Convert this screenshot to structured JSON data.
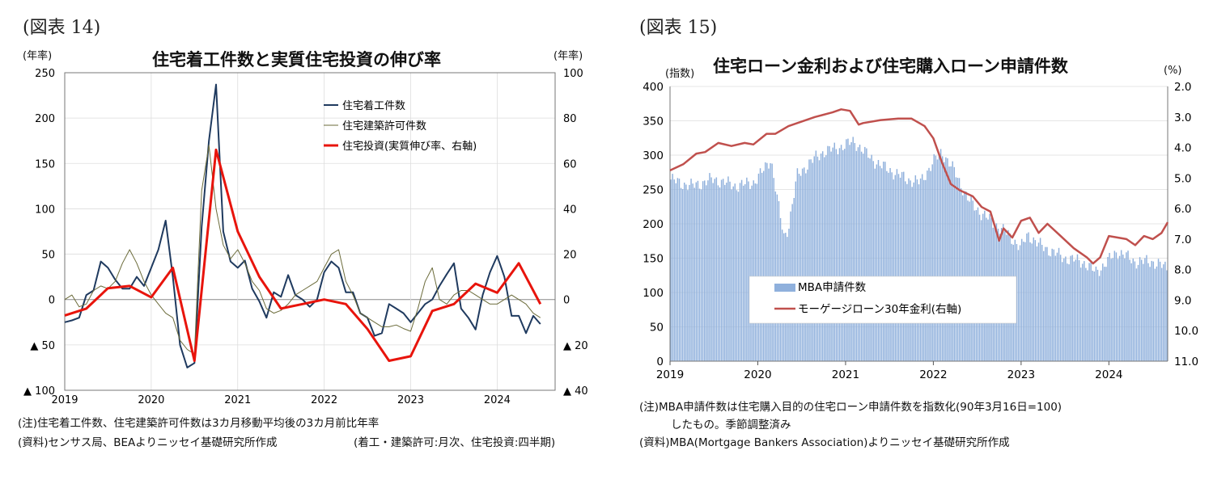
{
  "left": {
    "fig_label": "(図表 14)",
    "title": "住宅着工件数と実質住宅投資の伸び率",
    "y_left_unit": "(年率)",
    "y_right_unit": "(年率)",
    "legend": [
      "住宅着工件数",
      "住宅建築許可件数",
      "住宅投資(実質伸び率、右軸)"
    ],
    "notes": [
      "(注)住宅着工件数、住宅建築許可件数は3カ月移動平均後の3カ月前比年率",
      "(資料)センサス局、BEAよりニッセイ基礎研究所作成"
    ],
    "note_right": "(着工・建築許可:月次、住宅投資:四半期)"
  },
  "right": {
    "fig_label": "(図表 15)",
    "title": "住宅ローン金利および住宅購入ローン申請件数",
    "y_left_unit": "(指数)",
    "y_right_unit": "(%)",
    "legend": [
      "MBA申請件数",
      "モーゲージローン30年金利(右軸)"
    ],
    "notes": [
      "(注)MBA申請件数は住宅購入目的の住宅ローン申請件数を指数化(90年3月16日=100)",
      "したもの。季節調整済み",
      "(資料)MBA(Mortgage Bankers Association)よりニッセイ基礎研究所作成"
    ]
  },
  "colors": {
    "starts": "#1f3a5f",
    "permits": "#6b6b3a",
    "investment": "#e8140c",
    "mba_bar": "#8fb0dc",
    "mortgage": "#c0504d"
  },
  "chart_data": [
    {
      "type": "line",
      "title": "住宅着工件数と実質住宅投資の伸び率",
      "x_tick_labels": [
        "2019",
        "2020",
        "2021",
        "2022",
        "2023",
        "2024"
      ],
      "x_range": [
        2019.0,
        2024.67
      ],
      "y_left": {
        "ylim": [
          -100,
          250
        ],
        "ticks": [
          250,
          200,
          150,
          100,
          50,
          0,
          -50,
          -100
        ],
        "tick_labels": [
          "250",
          "200",
          "150",
          "100",
          "50",
          "0",
          "▲ 50",
          "▲ 100"
        ]
      },
      "y_right": {
        "ylim": [
          -40,
          100
        ],
        "ticks": [
          100,
          80,
          60,
          40,
          20,
          0,
          -20,
          -40
        ],
        "tick_labels": [
          "100",
          "80",
          "60",
          "40",
          "20",
          "0",
          "▲ 20",
          "▲ 40"
        ]
      },
      "series": [
        {
          "name": "住宅着工件数",
          "axis": "left",
          "x": [
            2019.0,
            2019.083,
            2019.167,
            2019.25,
            2019.333,
            2019.417,
            2019.5,
            2019.583,
            2019.667,
            2019.75,
            2019.833,
            2019.917,
            2020.0,
            2020.083,
            2020.167,
            2020.25,
            2020.333,
            2020.417,
            2020.5,
            2020.583,
            2020.667,
            2020.75,
            2020.833,
            2020.917,
            2021.0,
            2021.083,
            2021.167,
            2021.25,
            2021.333,
            2021.417,
            2021.5,
            2021.583,
            2021.667,
            2021.75,
            2021.833,
            2021.917,
            2022.0,
            2022.083,
            2022.167,
            2022.25,
            2022.333,
            2022.417,
            2022.5,
            2022.583,
            2022.667,
            2022.75,
            2022.833,
            2022.917,
            2023.0,
            2023.083,
            2023.167,
            2023.25,
            2023.333,
            2023.417,
            2023.5,
            2023.583,
            2023.667,
            2023.75,
            2023.833,
            2023.917,
            2024.0,
            2024.083,
            2024.167,
            2024.25,
            2024.333,
            2024.417,
            2024.5
          ],
          "values": [
            -25,
            -23,
            -20,
            5,
            10,
            42,
            35,
            22,
            12,
            12,
            25,
            15,
            35,
            55,
            87,
            25,
            -50,
            -75,
            -70,
            80,
            175,
            237,
            75,
            42,
            35,
            43,
            12,
            -2,
            -20,
            8,
            3,
            27,
            5,
            0,
            -8,
            0,
            30,
            42,
            35,
            8,
            8,
            -15,
            -20,
            -40,
            -37,
            -5,
            -10,
            -15,
            -25,
            -15,
            -5,
            0,
            15,
            28,
            40,
            -10,
            -20,
            -33,
            5,
            30,
            48,
            25,
            -18,
            -18,
            -37,
            -18,
            -27
          ]
        },
        {
          "name": "住宅建築許可件数",
          "axis": "left",
          "x": [
            2019.0,
            2019.083,
            2019.167,
            2019.25,
            2019.333,
            2019.417,
            2019.5,
            2019.583,
            2019.667,
            2019.75,
            2019.833,
            2019.917,
            2020.0,
            2020.083,
            2020.167,
            2020.25,
            2020.333,
            2020.417,
            2020.5,
            2020.583,
            2020.667,
            2020.75,
            2020.833,
            2020.917,
            2021.0,
            2021.083,
            2021.167,
            2021.25,
            2021.333,
            2021.417,
            2021.5,
            2021.583,
            2021.667,
            2021.75,
            2021.833,
            2021.917,
            2022.0,
            2022.083,
            2022.167,
            2022.25,
            2022.333,
            2022.417,
            2022.5,
            2022.583,
            2022.667,
            2022.75,
            2022.833,
            2022.917,
            2023.0,
            2023.083,
            2023.167,
            2023.25,
            2023.333,
            2023.417,
            2023.5,
            2023.583,
            2023.667,
            2023.75,
            2023.833,
            2023.917,
            2024.0,
            2024.083,
            2024.167,
            2024.25,
            2024.333,
            2024.417,
            2024.5
          ],
          "values": [
            0,
            5,
            -8,
            -5,
            10,
            15,
            12,
            20,
            40,
            55,
            40,
            20,
            5,
            -5,
            -15,
            -20,
            -45,
            -55,
            -60,
            120,
            170,
            100,
            60,
            45,
            55,
            40,
            20,
            10,
            -10,
            -15,
            -12,
            -5,
            5,
            10,
            15,
            20,
            35,
            50,
            55,
            20,
            5,
            -15,
            -20,
            -25,
            -30,
            -30,
            -28,
            -32,
            -35,
            -10,
            20,
            35,
            0,
            -5,
            5,
            10,
            10,
            5,
            0,
            -5,
            -5,
            0,
            5,
            0,
            -5,
            -15,
            -20
          ]
        },
        {
          "name": "住宅投資(実質伸び率、右軸)",
          "axis": "right",
          "x": [
            2019.0,
            2019.25,
            2019.5,
            2019.75,
            2020.0,
            2020.25,
            2020.5,
            2020.75,
            2021.0,
            2021.25,
            2021.5,
            2021.75,
            2022.0,
            2022.25,
            2022.5,
            2022.75,
            2023.0,
            2023.25,
            2023.5,
            2023.75,
            2024.0,
            2024.25,
            2024.5
          ],
          "values": [
            -7,
            -4,
            5,
            6,
            1,
            14,
            -27,
            66,
            30,
            10,
            -4,
            -2,
            0,
            -2,
            -13,
            -27,
            -25,
            -5,
            -2,
            7,
            3,
            16,
            -2
          ]
        }
      ]
    },
    {
      "type": "bar+line",
      "title": "住宅ローン金利および住宅購入ローン申請件数",
      "x_tick_labels": [
        "2019",
        "2020",
        "2021",
        "2022",
        "2023",
        "2024"
      ],
      "x_range": [
        2019.0,
        2024.67
      ],
      "y_left": {
        "ylim": [
          0,
          400
        ],
        "ticks": [
          400,
          350,
          300,
          250,
          200,
          150,
          100,
          50,
          0
        ],
        "tick_labels": [
          "400",
          "350",
          "300",
          "250",
          "200",
          "150",
          "100",
          "50",
          "0"
        ]
      },
      "y_right": {
        "ylim": [
          2.0,
          11.0
        ],
        "inverted": true,
        "ticks": [
          2.0,
          3.0,
          4.0,
          5.0,
          6.0,
          7.0,
          8.0,
          9.0,
          10.0,
          11.0
        ],
        "tick_labels": [
          "2.0",
          "3.0",
          "4.0",
          "5.0",
          "6.0",
          "7.0",
          "8.0",
          "9.0",
          "10.0",
          "11.0"
        ]
      },
      "series": [
        {
          "name": "MBA申請件数",
          "axis": "left",
          "kind": "bar",
          "anchors_x": [
            2019.0,
            2019.1,
            2019.25,
            2019.5,
            2019.75,
            2019.95,
            2020.05,
            2020.15,
            2020.25,
            2020.3,
            2020.35,
            2020.45,
            2020.6,
            2020.75,
            2020.9,
            2021.0,
            2021.1,
            2021.25,
            2021.4,
            2021.55,
            2021.7,
            2021.85,
            2022.0,
            2022.1,
            2022.25,
            2022.4,
            2022.55,
            2022.7,
            2022.85,
            2023.0,
            2023.08,
            2023.2,
            2023.35,
            2023.5,
            2023.7,
            2023.85,
            2023.95,
            2024.1,
            2024.3,
            2024.5,
            2024.67
          ],
          "anchors_y": [
            265,
            260,
            255,
            265,
            255,
            260,
            275,
            295,
            215,
            180,
            195,
            270,
            290,
            305,
            310,
            315,
            320,
            300,
            285,
            275,
            265,
            260,
            290,
            305,
            275,
            235,
            215,
            200,
            185,
            165,
            185,
            170,
            160,
            150,
            145,
            130,
            140,
            160,
            145,
            145,
            135
          ]
        },
        {
          "name": "モーゲージローン30年金利(右軸)",
          "axis": "right",
          "kind": "line",
          "x": [
            2019.0,
            2019.15,
            2019.3,
            2019.4,
            2019.55,
            2019.7,
            2019.85,
            2019.95,
            2020.1,
            2020.2,
            2020.35,
            2020.5,
            2020.65,
            2020.85,
            2020.95,
            2021.05,
            2021.15,
            2021.2,
            2021.4,
            2021.6,
            2021.75,
            2021.9,
            2022.0,
            2022.1,
            2022.2,
            2022.3,
            2022.45,
            2022.55,
            2022.65,
            2022.75,
            2022.8,
            2022.9,
            2023.0,
            2023.1,
            2023.2,
            2023.3,
            2023.45,
            2023.6,
            2023.75,
            2023.82,
            2023.9,
            2024.0,
            2024.1,
            2024.2,
            2024.3,
            2024.4,
            2024.5,
            2024.6,
            2024.67
          ],
          "values": [
            4.75,
            4.55,
            4.2,
            4.15,
            3.85,
            3.95,
            3.85,
            3.9,
            3.55,
            3.55,
            3.3,
            3.15,
            3.0,
            2.85,
            2.75,
            2.8,
            3.25,
            3.2,
            3.1,
            3.05,
            3.05,
            3.3,
            3.7,
            4.5,
            5.2,
            5.4,
            5.6,
            5.95,
            6.1,
            7.05,
            6.65,
            6.95,
            6.4,
            6.3,
            6.8,
            6.5,
            6.9,
            7.3,
            7.6,
            7.8,
            7.6,
            6.9,
            6.95,
            7.0,
            7.2,
            6.9,
            7.0,
            6.8,
            6.45
          ]
        }
      ]
    }
  ]
}
